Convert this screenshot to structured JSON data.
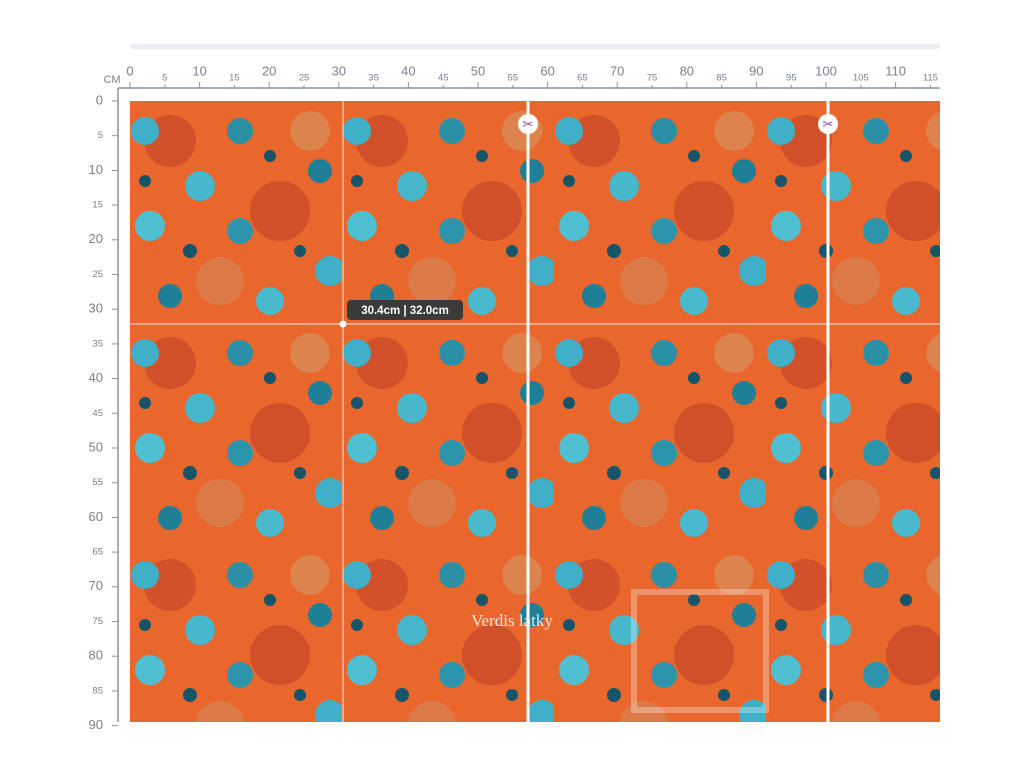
{
  "ruler": {
    "unit": "CM",
    "top_labels": [
      0,
      5,
      10,
      15,
      20,
      25,
      30,
      35,
      40,
      45,
      50,
      55,
      60,
      65,
      70,
      75,
      80,
      85,
      90,
      95,
      100,
      105,
      110,
      115
    ],
    "left_labels": [
      0,
      5,
      10,
      15,
      20,
      25,
      30,
      35,
      40,
      45,
      50,
      55,
      60,
      65,
      70,
      75,
      80,
      85,
      90
    ]
  },
  "measurement": {
    "label": "30.4cm | 32.0cm"
  },
  "watermark": {
    "text": "Verdis látky"
  }
}
